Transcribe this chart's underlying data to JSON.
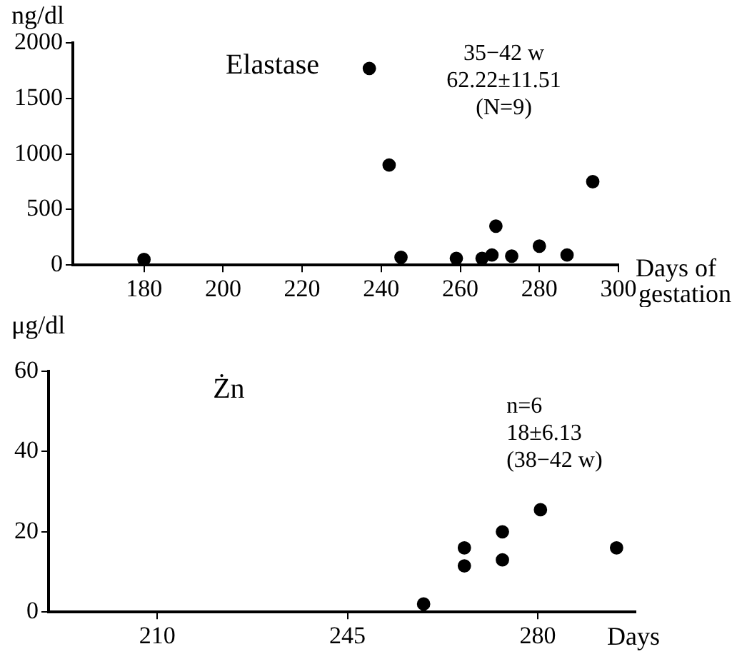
{
  "chart_data": [
    {
      "type": "scatter",
      "title": "Elastase",
      "xlabel": "Days of gestation",
      "ylabel": "ng/dl",
      "annotations": [
        "35−42 w",
        "62.22±11.51",
        "(N=9)"
      ],
      "x": [
        180,
        237,
        242,
        245,
        259,
        265.5,
        268,
        269,
        273,
        280,
        287,
        293.5
      ],
      "values": [
        50,
        1770,
        900,
        70,
        60,
        60,
        90,
        350,
        80,
        170,
        90,
        750
      ],
      "color": "#000000",
      "marker": "circle",
      "grid": false,
      "legend": false,
      "xlim": [
        162,
        300
      ],
      "xticks": [
        180,
        200,
        220,
        240,
        260,
        280,
        300
      ],
      "ylim": [
        0,
        2000
      ],
      "yticks": [
        0,
        500,
        1000,
        1500,
        2000
      ]
    },
    {
      "type": "scatter",
      "title": "Żn",
      "xlabel": "Days",
      "ylabel": "μg/dl",
      "annotations": [
        "n=6",
        "18±6.13",
        "(38−42 w)"
      ],
      "x": [
        259,
        266.5,
        266.5,
        273.5,
        273.5,
        280.5,
        294.5
      ],
      "values": [
        2,
        16,
        11.5,
        20,
        13,
        25.5,
        16
      ],
      "color": "#000000",
      "marker": "circle",
      "grid": false,
      "legend": false,
      "xlim": [
        190,
        298
      ],
      "xticks": [
        210,
        245,
        280
      ],
      "ylim": [
        0,
        60
      ],
      "yticks": [
        0,
        20,
        40,
        60
      ]
    }
  ]
}
